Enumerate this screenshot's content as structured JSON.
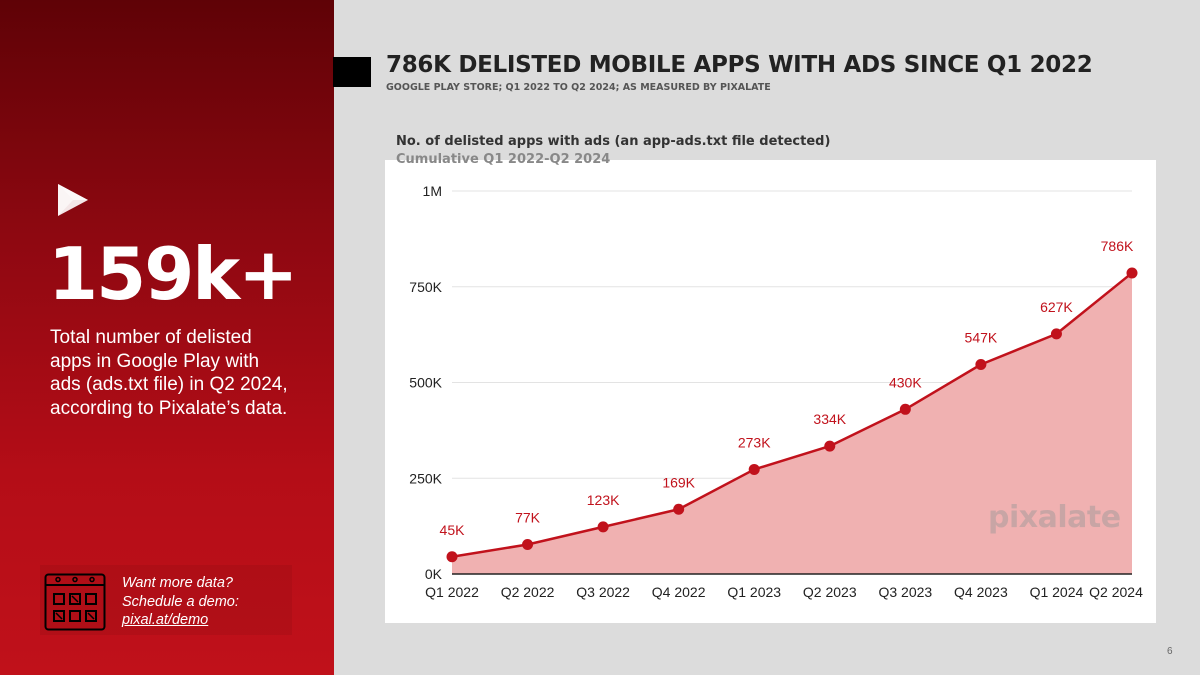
{
  "left_panel": {
    "big_stat": "159k+",
    "description": "Total number of delisted apps in Google Play with ads (ads.txt file) in Q2 2024, according to Pixalate’s data.",
    "demo_line1": "Want more data?",
    "demo_line2": "Schedule a demo:",
    "demo_link": "pixal.at/demo"
  },
  "header": {
    "title": "786K DELISTED MOBILE APPS WITH ADS SINCE Q1 2022",
    "subtitle": "GOOGLE PLAY STORE; Q1 2022 TO Q2 2024; AS MEASURED BY PIXALATE"
  },
  "watermark": "pixalate",
  "page_number": "6",
  "colors": {
    "accent": "#c1121c",
    "fill": "#f0b1b1",
    "dark_red": "#6a0309"
  },
  "chart_data": {
    "type": "area",
    "title": "No. of delisted apps with ads (an app-ads.txt file detected)",
    "subtitle": "Cumulative Q1 2022-Q2 2024",
    "categories": [
      "Q1 2022",
      "Q2 2022",
      "Q3 2022",
      "Q4 2022",
      "Q1 2023",
      "Q2 2023",
      "Q3 2023",
      "Q4 2023",
      "Q1 2024",
      "Q2 2024"
    ],
    "values": [
      45000,
      77000,
      123000,
      169000,
      273000,
      334000,
      430000,
      547000,
      627000,
      786000
    ],
    "data_labels": [
      "45K",
      "77K",
      "123K",
      "169K",
      "273K",
      "334K",
      "430K",
      "547K",
      "627K",
      "786K"
    ],
    "yticks": [
      0,
      250000,
      500000,
      750000,
      1000000
    ],
    "ytick_labels": [
      "0K",
      "250K",
      "500K",
      "750K",
      "1M"
    ],
    "ylim": [
      0,
      1000000
    ],
    "xlabel": "",
    "ylabel": "",
    "grid": true
  }
}
